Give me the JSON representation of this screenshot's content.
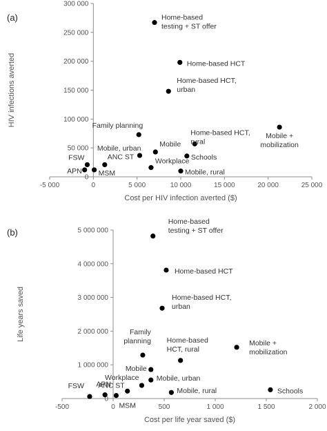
{
  "chart_data": [
    {
      "type": "scatter",
      "panel_label": "(a)",
      "xlabel": "Cost per HIV infection averted ($)",
      "ylabel": "HIV infections averted",
      "xlim": [
        -5000,
        25000
      ],
      "ylim": [
        0,
        300000
      ],
      "xticks": [
        -5000,
        0,
        5000,
        10000,
        15000,
        20000,
        25000
      ],
      "xtick_labels": [
        "-5 000",
        "0",
        "5 000",
        "10 000",
        "15 000",
        "20 000",
        "25 000"
      ],
      "yticks": [
        0,
        50000,
        100000,
        150000,
        200000,
        250000,
        300000
      ],
      "ytick_labels": [
        "0",
        "50 000",
        "100 000",
        "150 000",
        "200 000",
        "250 000",
        "300 000"
      ],
      "points": [
        {
          "label": [
            "Home-based",
            "testing + ST offer"
          ],
          "x": 7000,
          "y": 267000
        },
        {
          "label": [
            "Home-based HCT"
          ],
          "x": 9900,
          "y": 198000
        },
        {
          "label": [
            "Home-based HCT,",
            "urban"
          ],
          "x": 8600,
          "y": 148000
        },
        {
          "label": [
            "Family planning"
          ],
          "x": 5200,
          "y": 73000
        },
        {
          "label": [
            "Mobile, urban"
          ],
          "x": 5300,
          "y": 37000
        },
        {
          "label": [
            "Mobile"
          ],
          "x": 7100,
          "y": 43000
        },
        {
          "label": [
            "Home-based HCT,",
            "rural"
          ],
          "x": 11600,
          "y": 57000
        },
        {
          "label": [
            "Schools"
          ],
          "x": 10700,
          "y": 36000
        },
        {
          "label": [
            "Mobile +",
            "mobilization"
          ],
          "x": 21300,
          "y": 86000
        },
        {
          "label": [
            "Workplace"
          ],
          "x": 6600,
          "y": 16000
        },
        {
          "label": [
            "Mobile, rural"
          ],
          "x": 10000,
          "y": 10000
        },
        {
          "label": [
            "ANC ST"
          ],
          "x": 1300,
          "y": 21000
        },
        {
          "label": [
            "FSW"
          ],
          "x": -700,
          "y": 21000
        },
        {
          "label": [
            "APN"
          ],
          "x": -1000,
          "y": 12000
        },
        {
          "label": [
            "MSM"
          ],
          "x": 100,
          "y": 12000
        }
      ]
    },
    {
      "type": "scatter",
      "panel_label": "(b)",
      "xlabel": "Cost per life year saved ($)",
      "ylabel": "Life years saved",
      "xlim": [
        -500,
        2000
      ],
      "ylim": [
        0,
        5000000
      ],
      "xticks": [
        -500,
        0,
        500,
        1000,
        1500,
        2000
      ],
      "xtick_labels": [
        "-500",
        "0",
        "500",
        "1 000",
        "1 500",
        "2 000"
      ],
      "yticks": [
        0,
        1000000,
        2000000,
        3000000,
        4000000,
        5000000
      ],
      "ytick_labels": [
        "0",
        "1 000 000",
        "2 000 000",
        "3 000 000",
        "4 000 000",
        "5 000 000"
      ],
      "points": [
        {
          "label": [
            "Home-based",
            "testing + ST offer"
          ],
          "x": 390,
          "y": 4820000
        },
        {
          "label": [
            "Home-based HCT"
          ],
          "x": 520,
          "y": 3810000
        },
        {
          "label": [
            "Home-based HCT,",
            "urban"
          ],
          "x": 480,
          "y": 2680000
        },
        {
          "label": [
            "Family",
            "planning"
          ],
          "x": 290,
          "y": 1290000
        },
        {
          "label": [
            "Home-based",
            "HCT, rural"
          ],
          "x": 660,
          "y": 1130000
        },
        {
          "label": [
            "Mobile +",
            "mobilization"
          ],
          "x": 1210,
          "y": 1520000
        },
        {
          "label": [
            "Mobile"
          ],
          "x": 370,
          "y": 860000
        },
        {
          "label": [
            "Mobile, urban"
          ],
          "x": 370,
          "y": 550000
        },
        {
          "label": [
            "Workplace"
          ],
          "x": 280,
          "y": 390000
        },
        {
          "label": [
            "ANC ST"
          ],
          "x": 140,
          "y": 220000
        },
        {
          "label": [
            "Mobile, rural"
          ],
          "x": 570,
          "y": 180000
        },
        {
          "label": [
            "Schools"
          ],
          "x": 1540,
          "y": 260000
        },
        {
          "label": [
            "FSW"
          ],
          "x": -230,
          "y": 60000
        },
        {
          "label": [
            "APN"
          ],
          "x": -80,
          "y": 110000
        },
        {
          "label": [
            "MSM"
          ],
          "x": 30,
          "y": 90000
        }
      ]
    }
  ]
}
